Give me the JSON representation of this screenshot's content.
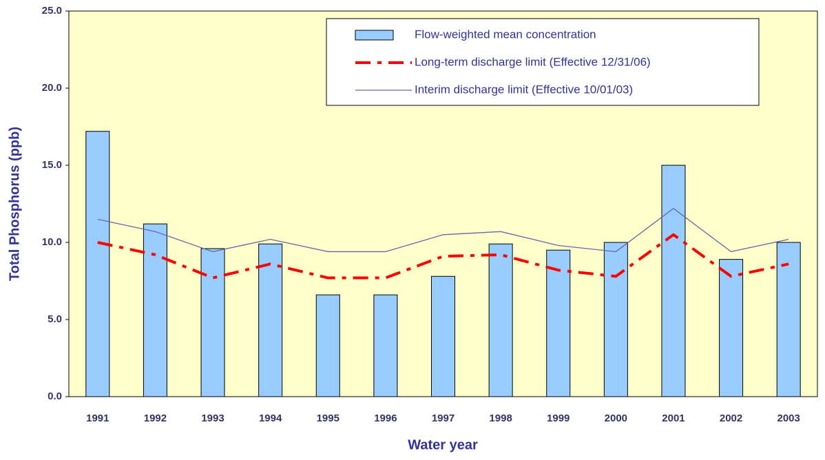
{
  "chart_data": {
    "type": "bar",
    "x_label": "Water year",
    "y_label": "Total Phosphorus (ppb)",
    "categories": [
      "1991",
      "1992",
      "1993",
      "1994",
      "1995",
      "1996",
      "1997",
      "1998",
      "1999",
      "2000",
      "2001",
      "2002",
      "2003"
    ],
    "series": [
      {
        "name": "Flow-weighted mean concentration",
        "type": "bar",
        "color": "#99ccff",
        "values": [
          17.2,
          11.2,
          9.6,
          9.9,
          6.6,
          6.6,
          7.8,
          9.9,
          9.5,
          10.0,
          15.0,
          8.9,
          10.0
        ]
      },
      {
        "name": "Long-term discharge limit (Effective 12/31/06)",
        "type": "line",
        "line_style": "dash-dot",
        "color": "#ff0000",
        "values": [
          10.0,
          9.2,
          7.7,
          8.6,
          7.7,
          7.7,
          9.1,
          9.2,
          8.2,
          7.8,
          10.5,
          7.8,
          8.6
        ]
      },
      {
        "name": "Interim discharge limit (Effective 10/01/03)",
        "type": "line",
        "line_style": "solid",
        "color": "#6666aa",
        "values": [
          11.5,
          10.7,
          9.4,
          10.2,
          9.4,
          9.4,
          10.5,
          10.7,
          9.8,
          9.4,
          12.2,
          9.4,
          10.2
        ]
      }
    ],
    "ylim": [
      0,
      25
    ],
    "yticks": [
      {
        "value": 0,
        "label": "0.0"
      },
      {
        "value": 5,
        "label": "5.0"
      },
      {
        "value": 10,
        "label": "10.0"
      },
      {
        "value": 15,
        "label": "15.0"
      },
      {
        "value": 20,
        "label": "20.0"
      },
      {
        "value": 25,
        "label": "25.0"
      }
    ],
    "legend": "top-right",
    "background": "#ffffcc"
  }
}
